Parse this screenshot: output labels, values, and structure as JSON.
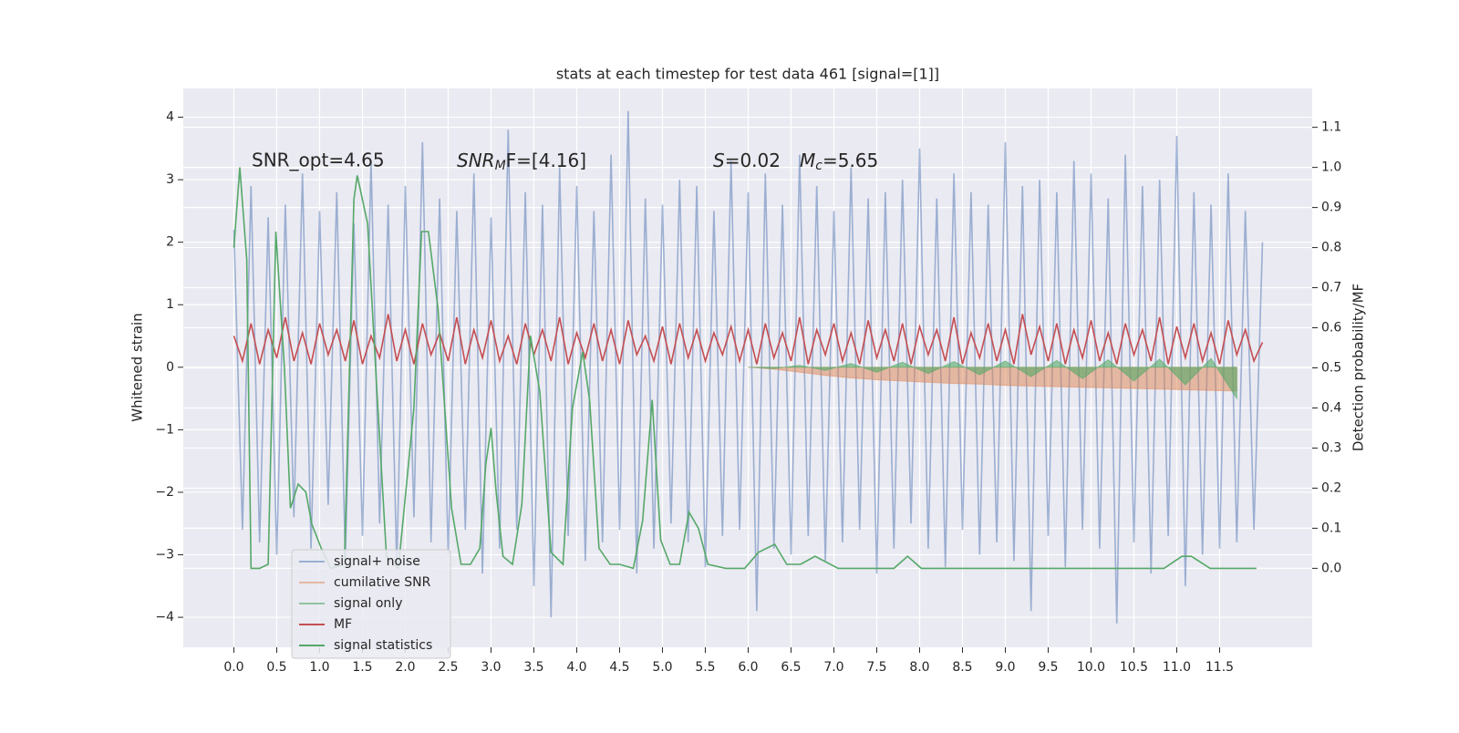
{
  "chart_data": {
    "type": "line",
    "title": "stats at each timestep for test data 461 [signal=[1]]",
    "ylabel": "Whitened strain",
    "y2label": "Detection probability/MF",
    "annotations": {
      "snr_opt": "SNR_opt=4.65",
      "snr_mf": {
        "base": "SNR",
        "sub": "M",
        "rest": "F=[4.16]"
      },
      "s": {
        "base": "S",
        "rest": "=0.02"
      },
      "mc": {
        "base": "M",
        "sub": "c",
        "rest": "=5.65"
      }
    },
    "xlim": [
      -0.59,
      12.58
    ],
    "ylim": [
      -4.48,
      4.46
    ],
    "y2lim": [
      -0.197,
      1.197
    ],
    "xticks": [
      {
        "value": 0,
        "label": "0.0"
      },
      0.5,
      {
        "value": 1,
        "label": "1.0"
      },
      1.5,
      {
        "value": 2,
        "label": "2.0"
      },
      2.5,
      {
        "value": 3,
        "label": "3.0"
      },
      3.5,
      {
        "value": 4,
        "label": "4.0"
      },
      4.5,
      {
        "value": 5,
        "label": "5.0"
      },
      5.5,
      {
        "value": 6,
        "label": "6.0"
      },
      6.5,
      {
        "value": 7,
        "label": "7.0"
      },
      7.5,
      {
        "value": 8,
        "label": "8.0"
      },
      8.5,
      {
        "value": 9,
        "label": "9.0"
      },
      9.5,
      {
        "value": 10,
        "label": "10.0"
      },
      10.5,
      {
        "value": 11,
        "label": "11.0"
      },
      11.5
    ],
    "yticks": [
      {
        "value": -4,
        "label": "−4"
      },
      {
        "value": -3,
        "label": "−3"
      },
      {
        "value": -2,
        "label": "−2"
      },
      {
        "value": -1,
        "label": "−1"
      },
      0,
      1,
      2,
      3,
      4
    ],
    "y2ticks": [
      {
        "value": 0,
        "label": "0.0"
      },
      0.1,
      0.2,
      0.3,
      0.4,
      0.5,
      0.6,
      0.7,
      0.8,
      0.9,
      {
        "value": 1,
        "label": "1.0"
      },
      1.1
    ],
    "grid": true,
    "legend": "lower left",
    "x": [
      0.0,
      0.1,
      0.2,
      0.3,
      0.4,
      0.5,
      0.6,
      0.7,
      0.8,
      0.9,
      1.0,
      1.1,
      1.2,
      1.3,
      1.4,
      1.5,
      1.6,
      1.7,
      1.8,
      1.9,
      2.0,
      2.1,
      2.2,
      2.3,
      2.4,
      2.5,
      2.6,
      2.7,
      2.8,
      2.9,
      3.0,
      3.1,
      3.2,
      3.3,
      3.4,
      3.5,
      3.6,
      3.7,
      3.8,
      3.9,
      4.0,
      4.1,
      4.2,
      4.3,
      4.4,
      4.5,
      4.6,
      4.7,
      4.8,
      4.9,
      5.0,
      5.1,
      5.2,
      5.3,
      5.4,
      5.5,
      5.6,
      5.7,
      5.8,
      5.9,
      6.0,
      6.1,
      6.2,
      6.3,
      6.4,
      6.5,
      6.6,
      6.7,
      6.8,
      6.9,
      7.0,
      7.1,
      7.2,
      7.3,
      7.4,
      7.5,
      7.6,
      7.7,
      7.8,
      7.9,
      8.0,
      8.1,
      8.2,
      8.3,
      8.4,
      8.5,
      8.6,
      8.7,
      8.8,
      8.9,
      9.0,
      9.1,
      9.2,
      9.3,
      9.4,
      9.5,
      9.6,
      9.7,
      9.8,
      9.9,
      10.0,
      10.1,
      10.2,
      10.3,
      10.4,
      10.5,
      10.6,
      10.7,
      10.8,
      10.9,
      11.0,
      11.1,
      11.2,
      11.3,
      11.4,
      11.5,
      11.6,
      11.7,
      11.8,
      11.9,
      12.0
    ],
    "series": [
      {
        "name": "signal+ noise",
        "color": "#4c72b0",
        "opacity": 0.5,
        "axis": "y",
        "style": "line",
        "values": [
          2.2,
          -2.6,
          2.9,
          -2.8,
          2.4,
          -3.0,
          2.6,
          -2.4,
          3.1,
          -2.9,
          2.5,
          -2.2,
          2.8,
          -3.1,
          2.3,
          -2.7,
          3.3,
          -2.5,
          2.6,
          -3.2,
          2.9,
          -2.4,
          3.6,
          -2.8,
          2.7,
          -3.0,
          2.5,
          -2.6,
          3.1,
          -3.3,
          2.4,
          -2.9,
          3.8,
          -2.6,
          2.8,
          -3.5,
          2.6,
          -4.0,
          3.2,
          -2.7,
          2.9,
          -3.1,
          2.5,
          -2.8,
          3.4,
          -2.6,
          4.1,
          -3.3,
          2.7,
          -2.9,
          2.6,
          -2.5,
          3.0,
          -2.8,
          2.9,
          -3.2,
          2.5,
          -2.7,
          3.3,
          -2.6,
          2.8,
          -3.9,
          3.1,
          -2.9,
          2.6,
          -3.0,
          3.4,
          -2.7,
          2.9,
          -3.1,
          2.5,
          -2.8,
          3.2,
          -2.6,
          2.7,
          -3.3,
          2.8,
          -2.9,
          3.0,
          -2.5,
          3.5,
          -2.9,
          2.7,
          -3.2,
          3.1,
          -2.6,
          2.8,
          -3.0,
          2.6,
          -2.8,
          3.6,
          -3.1,
          2.9,
          -3.9,
          3.0,
          -2.7,
          2.8,
          -3.2,
          3.3,
          -2.6,
          3.1,
          -2.9,
          2.7,
          -4.1,
          3.4,
          -2.8,
          2.9,
          -3.3,
          3.0,
          -2.7,
          3.7,
          -3.5,
          2.8,
          -3.0,
          2.6,
          -2.9,
          3.1,
          -2.8,
          2.5,
          -2.6,
          2.0
        ]
      },
      {
        "name": "cumilative SNR",
        "color": "#dd8452",
        "opacity": 0.5,
        "axis": "y",
        "style": "area",
        "x": [
          6.0,
          6.3,
          6.6,
          6.9,
          7.2,
          7.5,
          7.8,
          8.1,
          8.4,
          8.7,
          9.0,
          9.3,
          9.6,
          9.9,
          10.2,
          10.5,
          10.8,
          11.1,
          11.4,
          11.7
        ],
        "values": [
          0,
          -0.03,
          -0.08,
          -0.13,
          -0.17,
          -0.2,
          -0.22,
          -0.24,
          -0.26,
          -0.27,
          -0.29,
          -0.3,
          -0.31,
          -0.32,
          -0.33,
          -0.34,
          -0.35,
          -0.36,
          -0.37,
          -0.38
        ]
      },
      {
        "name": "signal only",
        "color": "#55a868",
        "opacity": 0.6,
        "axis": "y",
        "style": "area",
        "x": [
          6.0,
          6.3,
          6.6,
          6.9,
          7.2,
          7.5,
          7.8,
          8.1,
          8.4,
          8.7,
          9.0,
          9.3,
          9.6,
          9.9,
          10.2,
          10.5,
          10.8,
          11.1,
          11.4,
          11.7
        ],
        "values": [
          0,
          -0.02,
          0.03,
          -0.05,
          0.06,
          -0.08,
          0.08,
          -0.1,
          0.09,
          -0.12,
          0.1,
          -0.15,
          0.11,
          -0.18,
          0.12,
          -0.22,
          0.13,
          -0.28,
          0.14,
          -0.5
        ]
      },
      {
        "name": "MF",
        "color": "#c44e52",
        "opacity": 1,
        "axis": "y",
        "style": "line",
        "values": [
          0.5,
          0.1,
          0.7,
          0.05,
          0.6,
          0.15,
          0.8,
          0.1,
          0.55,
          0.05,
          0.7,
          0.2,
          0.6,
          0.1,
          0.75,
          0.05,
          0.5,
          0.15,
          0.85,
          0.1,
          0.6,
          0.05,
          0.7,
          0.2,
          0.55,
          0.1,
          0.8,
          0.05,
          0.6,
          0.15,
          0.75,
          0.1,
          0.5,
          0.05,
          0.7,
          0.2,
          0.6,
          0.1,
          0.8,
          0.05,
          0.55,
          0.15,
          0.7,
          0.1,
          0.6,
          0.05,
          0.75,
          0.2,
          0.5,
          0.1,
          0.65,
          0.05,
          0.7,
          0.15,
          0.6,
          0.1,
          0.55,
          0.2,
          0.65,
          0.1,
          0.6,
          0.05,
          0.7,
          0.15,
          0.55,
          0.1,
          0.8,
          0.05,
          0.6,
          0.2,
          0.7,
          0.1,
          0.55,
          0.05,
          0.75,
          0.15,
          0.6,
          0.1,
          0.7,
          0.05,
          0.65,
          0.2,
          0.6,
          0.1,
          0.8,
          0.05,
          0.55,
          0.15,
          0.7,
          0.1,
          0.6,
          0.05,
          0.85,
          0.2,
          0.65,
          0.1,
          0.7,
          0.05,
          0.6,
          0.15,
          0.75,
          0.1,
          0.55,
          0.05,
          0.7,
          0.2,
          0.6,
          0.1,
          0.8,
          0.05,
          0.65,
          0.15,
          0.7,
          0.1,
          0.55,
          0.05,
          0.75,
          0.2,
          0.6,
          0.1,
          0.4
        ]
      },
      {
        "name": "signal statistics",
        "color": "#55a868",
        "opacity": 1,
        "axis": "y2",
        "style": "line",
        "x": [
          0.0,
          0.07,
          0.15,
          0.2,
          0.3,
          0.4,
          0.49,
          0.59,
          0.66,
          0.75,
          0.84,
          0.91,
          1.02,
          1.13,
          1.29,
          1.4,
          1.44,
          1.56,
          1.67,
          1.78,
          1.92,
          2.1,
          2.19,
          2.27,
          2.38,
          2.54,
          2.65,
          2.76,
          2.87,
          2.94,
          3.0,
          3.06,
          3.14,
          3.25,
          3.36,
          3.46,
          3.57,
          3.7,
          3.84,
          3.95,
          4.07,
          4.15,
          4.26,
          4.39,
          4.5,
          4.66,
          4.77,
          4.88,
          4.98,
          5.09,
          5.2,
          5.31,
          5.42,
          5.53,
          5.74,
          5.96,
          6.12,
          6.31,
          6.45,
          6.61,
          6.78,
          7.05,
          7.7,
          7.86,
          8.02,
          10.85,
          11.06,
          11.17,
          11.39,
          11.93
        ],
        "values": [
          0.8,
          1.0,
          0.77,
          0.0,
          0.0,
          0.01,
          0.84,
          0.5,
          0.15,
          0.21,
          0.19,
          0.11,
          0.05,
          0.0,
          0.01,
          0.92,
          0.98,
          0.86,
          0.44,
          0.03,
          0.0,
          0.4,
          0.84,
          0.84,
          0.65,
          0.15,
          0.01,
          0.01,
          0.05,
          0.26,
          0.35,
          0.19,
          0.03,
          0.01,
          0.16,
          0.58,
          0.44,
          0.04,
          0.01,
          0.4,
          0.54,
          0.42,
          0.05,
          0.01,
          0.01,
          0.0,
          0.12,
          0.42,
          0.07,
          0.01,
          0.01,
          0.14,
          0.1,
          0.01,
          0.0,
          0.0,
          0.04,
          0.06,
          0.01,
          0.01,
          0.03,
          0.0,
          0.0,
          0.03,
          0.0,
          0.0,
          0.03,
          0.03,
          0.0,
          0.0
        ]
      }
    ]
  }
}
